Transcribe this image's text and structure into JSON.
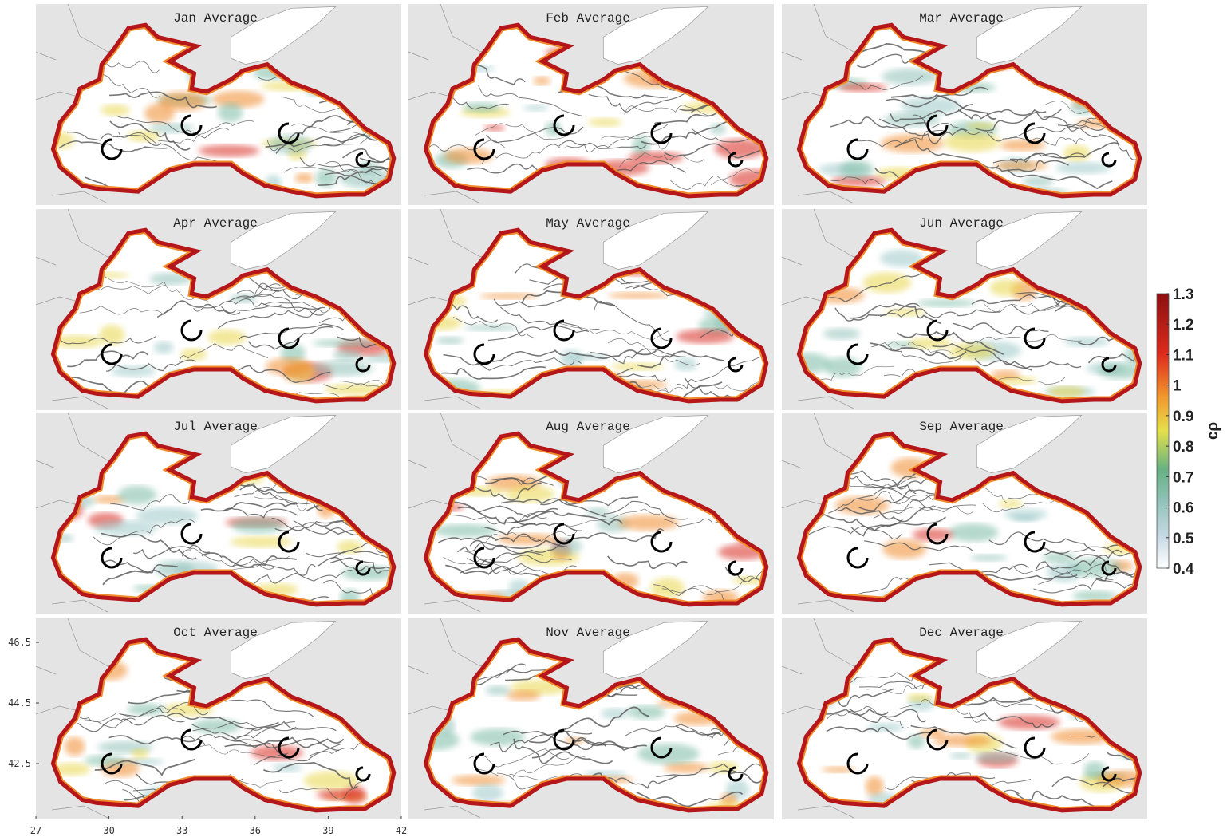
{
  "panels": [
    {
      "title": "Jan Average"
    },
    {
      "title": "Feb Average"
    },
    {
      "title": "Mar Average"
    },
    {
      "title": "Apr Average"
    },
    {
      "title": "May Average"
    },
    {
      "title": "Jun Average"
    },
    {
      "title": "Jul Average"
    },
    {
      "title": "Aug Average"
    },
    {
      "title": "Sep Average"
    },
    {
      "title": "Oct Average"
    },
    {
      "title": "Nov Average"
    },
    {
      "title": "Dec Average"
    }
  ],
  "axes": {
    "lat_ticks": [
      46.5,
      44.5,
      42.5
    ],
    "lon_ticks": [
      27,
      30,
      33,
      36,
      39,
      42
    ]
  },
  "colorbar": {
    "label": "cρ",
    "range": [
      0.4,
      1.3
    ],
    "ticks": [
      1.3,
      1.2,
      1.1,
      1,
      0.9,
      0.8,
      0.7,
      0.6,
      0.5,
      0.4
    ]
  }
}
